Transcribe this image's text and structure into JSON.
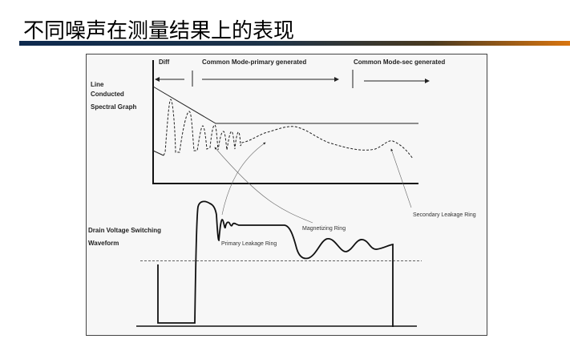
{
  "slide": {
    "title": "不同噪声在测量结果上的表现",
    "bar_colors": [
      "#0e2a4e",
      "#d9750f"
    ]
  },
  "diagram": {
    "regions": {
      "diff": "Diff",
      "cm_primary": "Common Mode-primary generated",
      "cm_secondary": "Common Mode-sec generated"
    },
    "spectral_label": [
      "Line",
      "Conducted",
      "Spectral Graph"
    ],
    "waveform_label": [
      "Drain Voltage Switching",
      "Waveform"
    ],
    "annotations": {
      "primary": "Primary Leakage Ring",
      "magnetizing": "Magnetizing Ring",
      "secondary": "Secondary Leakage Ring"
    }
  }
}
